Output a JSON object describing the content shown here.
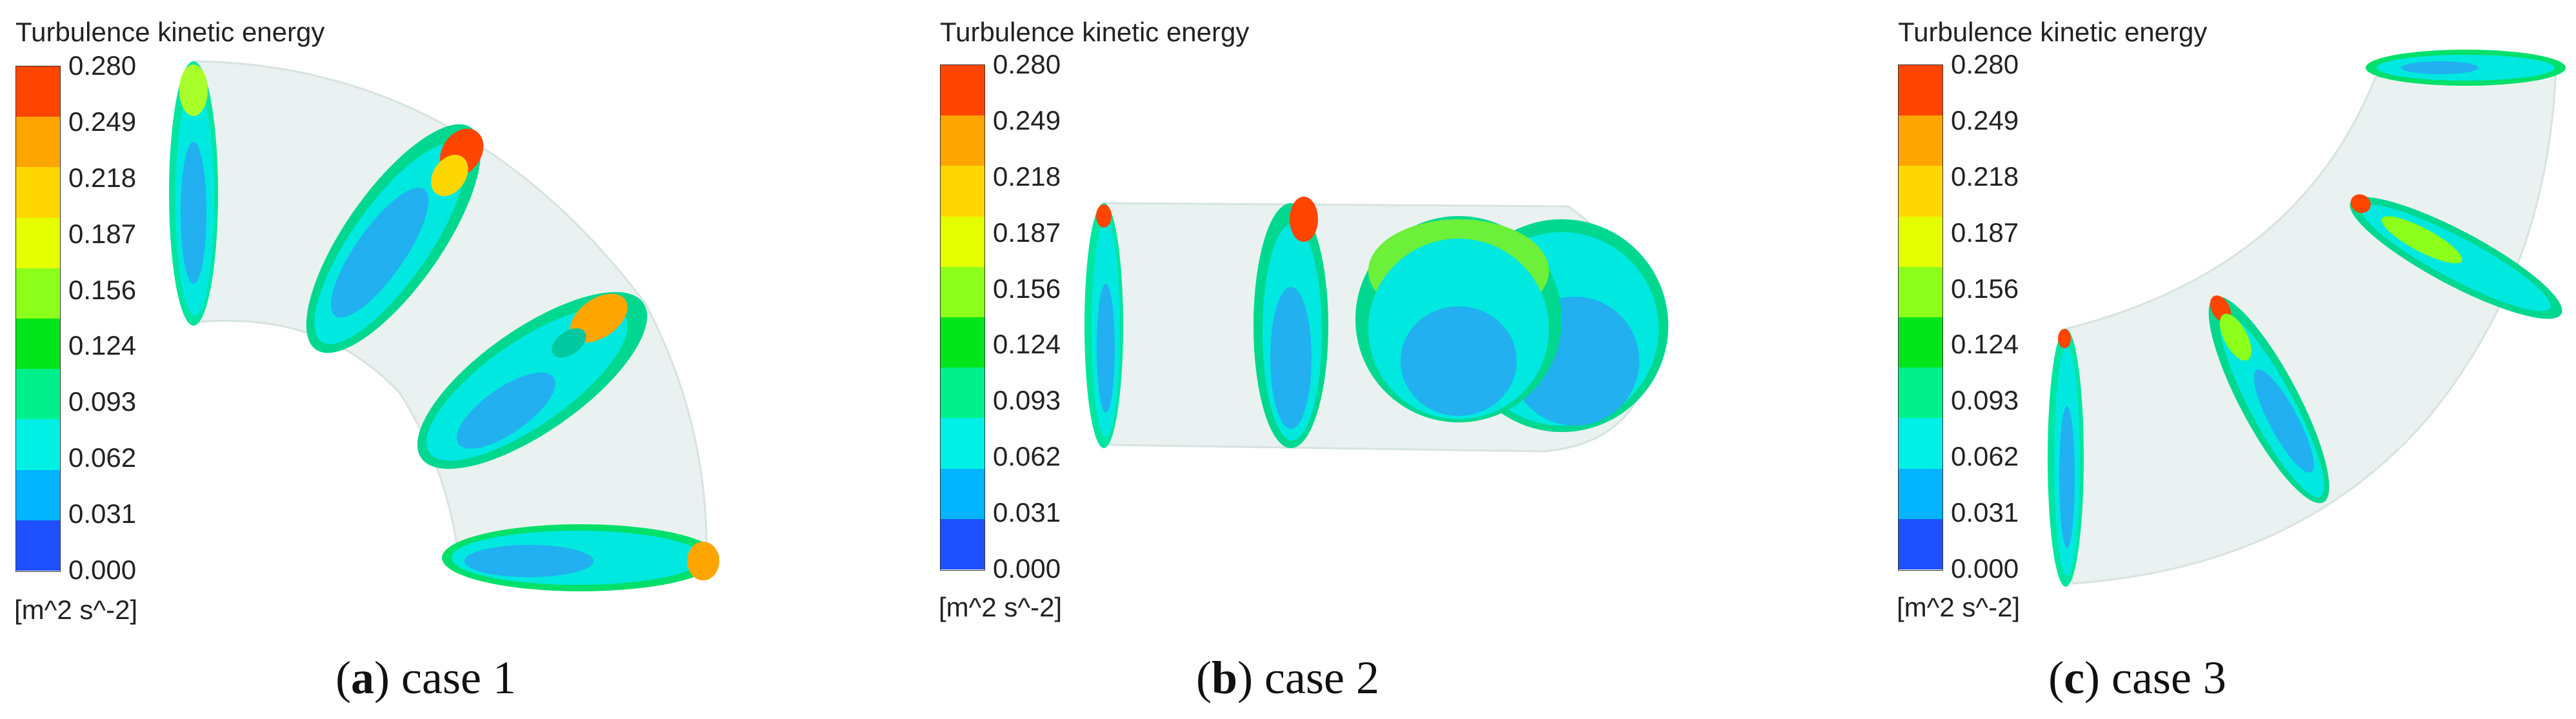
{
  "legend": {
    "title": "Turbulence kinetic energy",
    "unit": "[m^2 s^-2]",
    "ticks": [
      "0.280",
      "0.249",
      "0.218",
      "0.187",
      "0.156",
      "0.124",
      "0.093",
      "0.062",
      "0.031",
      "0.000"
    ],
    "colors_top_to_bottom": [
      "#ff4500",
      "#ffa500",
      "#ffd700",
      "#e5ff00",
      "#8cff1a",
      "#00e61a",
      "#00f08c",
      "#00f0e6",
      "#00b4ff",
      "#1e50ff"
    ]
  },
  "panels": [
    {
      "letter": "a",
      "caption_open": "(",
      "caption_close": ") case 1"
    },
    {
      "letter": "b",
      "caption_open": "(",
      "caption_close": ") case 2"
    },
    {
      "letter": "c",
      "caption_open": "(",
      "caption_close": ") case 3"
    }
  ]
}
